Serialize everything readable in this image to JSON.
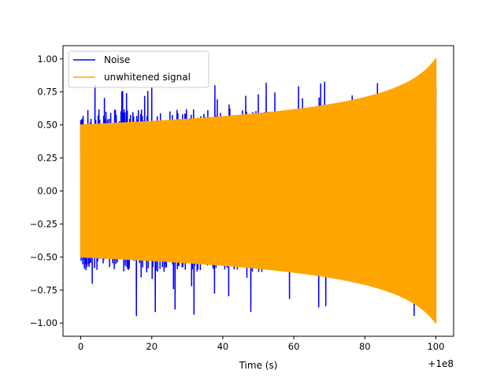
{
  "chart_data": {
    "type": "line",
    "title": "",
    "xlabel": "Time (s)",
    "ylabel": "",
    "x_offset_label": "+1e8",
    "xlim": [
      -5,
      105
    ],
    "ylim": [
      -1.1,
      1.1
    ],
    "x_ticks": [
      0,
      20,
      40,
      60,
      80,
      100
    ],
    "x_tick_labels": [
      "0",
      "20",
      "40",
      "60",
      "80",
      "100"
    ],
    "y_ticks": [
      -1.0,
      -0.75,
      -0.5,
      -0.25,
      0.0,
      0.25,
      0.5,
      0.75,
      1.0
    ],
    "y_tick_labels": [
      "−1.00",
      "−0.75",
      "−0.50",
      "−0.25",
      "0.00",
      "0.25",
      "0.50",
      "0.75",
      "1.00"
    ],
    "grid": false,
    "legend_position": "top-left",
    "series": [
      {
        "name": "Noise",
        "color": "#0000ff",
        "kind": "noise",
        "x_range": [
          0,
          100
        ],
        "typical_amplitude": 0.62,
        "max_positive": 0.83,
        "min_negative": -0.95
      },
      {
        "name": "unwhitened signal",
        "color": "#ffa500",
        "kind": "chirp-envelope",
        "x_range": [
          0,
          100
        ],
        "envelope_start": 0.5,
        "envelope_end": 1.0
      }
    ]
  }
}
